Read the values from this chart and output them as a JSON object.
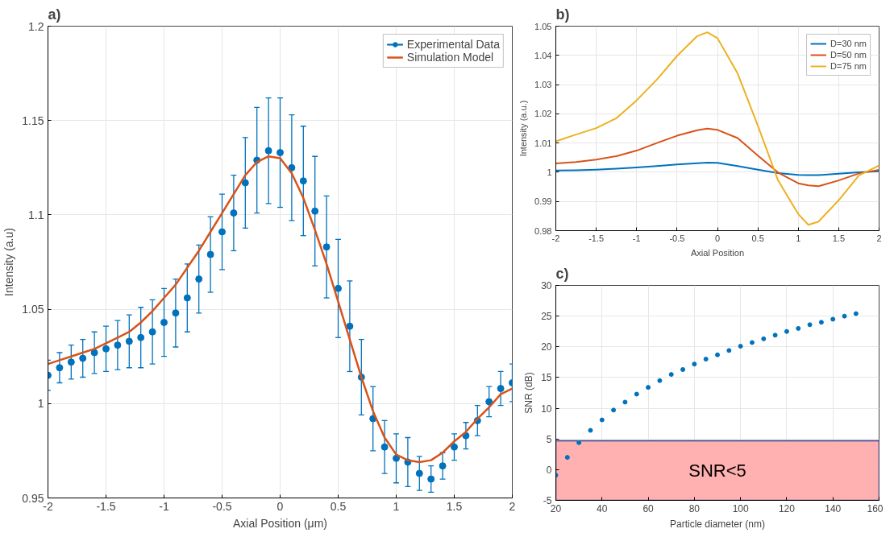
{
  "chart_data": [
    {
      "type": "scatter",
      "title": "a)",
      "xlabel": "Axial Position (μm)",
      "ylabel": "Intensity (a.u)",
      "xlim": [
        -2,
        2
      ],
      "ylim": [
        0.95,
        1.2
      ],
      "xticks": [
        -2,
        -1.5,
        -1,
        -0.5,
        0,
        0.5,
        1,
        1.5,
        2
      ],
      "yticks": [
        0.95,
        1,
        1.05,
        1.1,
        1.15,
        1.2
      ],
      "grid": true,
      "legend": "top right",
      "x": [
        -2,
        -1.9,
        -1.8,
        -1.7,
        -1.6,
        -1.5,
        -1.4,
        -1.3,
        -1.2,
        -1.1,
        -1,
        -0.9,
        -0.8,
        -0.7,
        -0.6,
        -0.5,
        -0.4,
        -0.3,
        -0.2,
        -0.1,
        0,
        0.1,
        0.2,
        0.3,
        0.4,
        0.5,
        0.6,
        0.7,
        0.8,
        0.9,
        1,
        1.1,
        1.2,
        1.3,
        1.4,
        1.5,
        1.6,
        1.7,
        1.8,
        1.9,
        2
      ],
      "series": [
        {
          "name": "Experimental Data",
          "color": "#0072bd",
          "type": "scatter",
          "marker": "circle",
          "values": [
            1.015,
            1.019,
            1.022,
            1.024,
            1.027,
            1.029,
            1.031,
            1.033,
            1.035,
            1.038,
            1.043,
            1.048,
            1.056,
            1.066,
            1.079,
            1.091,
            1.101,
            1.117,
            1.129,
            1.134,
            1.133,
            1.125,
            1.118,
            1.102,
            1.083,
            1.061,
            1.041,
            1.014,
            0.992,
            0.977,
            0.971,
            0.969,
            0.963,
            0.96,
            0.967,
            0.977,
            0.983,
            0.991,
            1.001,
            1.008,
            1.011
          ],
          "errors": [
            0.008,
            0.008,
            0.009,
            0.01,
            0.011,
            0.012,
            0.013,
            0.014,
            0.016,
            0.017,
            0.018,
            0.018,
            0.018,
            0.018,
            0.02,
            0.02,
            0.02,
            0.024,
            0.028,
            0.028,
            0.029,
            0.028,
            0.029,
            0.029,
            0.027,
            0.026,
            0.024,
            0.02,
            0.017,
            0.014,
            0.013,
            0.013,
            0.009,
            0.007,
            0.007,
            0.007,
            0.007,
            0.008,
            0.008,
            0.009,
            0.01
          ]
        },
        {
          "name": "Simulation Model",
          "color": "#d95319",
          "type": "line",
          "values": [
            1.021,
            1.023,
            1.025,
            1.027,
            1.029,
            1.032,
            1.035,
            1.038,
            1.043,
            1.049,
            1.056,
            1.063,
            1.072,
            1.081,
            1.091,
            1.101,
            1.111,
            1.121,
            1.128,
            1.131,
            1.13,
            1.122,
            1.109,
            1.092,
            1.074,
            1.054,
            1.034,
            1.014,
            0.996,
            0.982,
            0.973,
            0.97,
            0.969,
            0.97,
            0.974,
            0.98,
            0.985,
            0.992,
            0.998,
            1.005,
            1.008
          ]
        }
      ]
    },
    {
      "type": "line",
      "title": "b)",
      "xlabel": "Axial Position",
      "ylabel": "Intensity (a.u.)",
      "xlim": [
        -2,
        2
      ],
      "ylim": [
        0.98,
        1.05
      ],
      "xticks": [
        -2,
        -1.5,
        -1,
        -0.5,
        0,
        0.5,
        1,
        1.5,
        2
      ],
      "yticks": [
        0.98,
        0.99,
        1,
        1.01,
        1.02,
        1.03,
        1.04,
        1.05
      ],
      "grid": true,
      "legend": "top right",
      "x": [
        -2,
        -1.75,
        -1.5,
        -1.25,
        -1,
        -0.75,
        -0.5,
        -0.25,
        -0.125,
        0,
        0.25,
        0.5,
        0.75,
        1,
        1.125,
        1.25,
        1.5,
        1.75,
        2
      ],
      "series": [
        {
          "name": "D=30 nm",
          "color": "#0072bd",
          "values": [
            1.0006,
            1.0007,
            1.0009,
            1.0012,
            1.0016,
            1.0021,
            1.0027,
            1.0031,
            1.0033,
            1.0032,
            1.0021,
            1.0009,
            0.9997,
            0.9991,
            0.999,
            0.999,
            0.9995,
            1,
            1.0003
          ]
        },
        {
          "name": "D=50 nm",
          "color": "#d95319",
          "values": [
            1.003,
            1.0035,
            1.0043,
            1.0055,
            1.0074,
            1.01,
            1.0125,
            1.0144,
            1.0149,
            1.0145,
            1.0117,
            1.0057,
            0.9999,
            0.9962,
            0.9955,
            0.9952,
            0.9972,
            0.9996,
            1.0008
          ]
        },
        {
          "name": "D=75 nm",
          "color": "#edb120",
          "values": [
            1.0106,
            1.0129,
            1.0151,
            1.0185,
            1.0246,
            1.0317,
            1.0398,
            1.0466,
            1.0479,
            1.0459,
            1.0338,
            1.0159,
            0.9972,
            0.9857,
            0.982,
            0.9831,
            0.9904,
            0.9989,
            1.0023
          ]
        }
      ]
    },
    {
      "type": "scatter",
      "title": "c)",
      "xlabel": "Particle diameter (nm)",
      "ylabel": "SNR (dB)",
      "xlim": [
        20,
        160
      ],
      "ylim": [
        -5,
        30
      ],
      "xticks": [
        20,
        40,
        60,
        80,
        100,
        120,
        140,
        160
      ],
      "yticks": [
        -5,
        0,
        5,
        10,
        15,
        20,
        25,
        30
      ],
      "grid": true,
      "marker": "circle",
      "x": [
        20,
        25,
        30,
        35,
        40,
        45,
        50,
        55,
        60,
        65,
        70,
        75,
        80,
        85,
        90,
        95,
        100,
        105,
        110,
        115,
        120,
        125,
        130,
        135,
        140,
        145,
        150
      ],
      "series": [
        {
          "color": "#0072bd",
          "values": [
            -0.9,
            2,
            4.4,
            6.4,
            8.1,
            9.7,
            11,
            12.3,
            13.4,
            14.5,
            15.5,
            16.3,
            17.2,
            18,
            18.7,
            19.4,
            20.1,
            20.7,
            21.3,
            21.9,
            22.5,
            23,
            23.6,
            24,
            24.5,
            25,
            25.4
          ]
        }
      ],
      "bands": [
        {
          "axis": "y",
          "from": -5,
          "to": 4.7,
          "label": "SNR<5",
          "color": "#ffb0b0"
        }
      ]
    }
  ]
}
